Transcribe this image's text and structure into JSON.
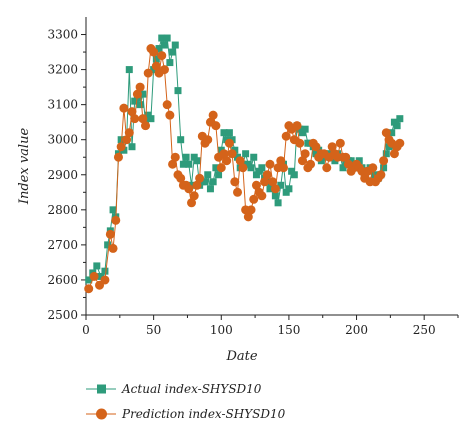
{
  "chart_data": {
    "type": "line",
    "xlabel": "Date",
    "ylabel": "Index value",
    "xlim": [
      0,
      275
    ],
    "ylim": [
      2500,
      3350
    ],
    "xticks": [
      0,
      50,
      100,
      150,
      200,
      250
    ],
    "yticks": [
      2500,
      2600,
      2700,
      2800,
      2900,
      3000,
      3100,
      3200,
      3300
    ],
    "grid": false,
    "legend_position": "bottom",
    "series": [
      {
        "name": "Actual index-SHYSD10",
        "color": "#2e9b7b",
        "marker": "square",
        "x": [
          2,
          5,
          8,
          11,
          14,
          16,
          18,
          20,
          22,
          24,
          26,
          28,
          30,
          32,
          34,
          36,
          38,
          40,
          42,
          44,
          46,
          48,
          50,
          52,
          54,
          56,
          58,
          60,
          62,
          64,
          66,
          68,
          70,
          72,
          74,
          76,
          78,
          80,
          82,
          84,
          86,
          88,
          90,
          92,
          94,
          96,
          98,
          100,
          102,
          104,
          106,
          108,
          110,
          112,
          114,
          116,
          118,
          120,
          122,
          124,
          126,
          128,
          130,
          132,
          134,
          136,
          138,
          140,
          142,
          144,
          146,
          148,
          150,
          152,
          154,
          156,
          158,
          160,
          162,
          164,
          166,
          168,
          170,
          172,
          174,
          176,
          178,
          180,
          182,
          184,
          186,
          188,
          190,
          192,
          194,
          196,
          198,
          200,
          202,
          204,
          206,
          208,
          210,
          212,
          214,
          216,
          218,
          220,
          222,
          224,
          226,
          228,
          230,
          232
        ],
        "y": [
          2600,
          2620,
          2640,
          2610,
          2625,
          2700,
          2740,
          2800,
          2780,
          2960,
          3000,
          2970,
          3000,
          3200,
          2980,
          3110,
          3120,
          3100,
          3130,
          3050,
          3070,
          3060,
          3200,
          3230,
          3260,
          3290,
          3270,
          3290,
          3220,
          3250,
          3270,
          3140,
          3000,
          2930,
          2950,
          2930,
          2870,
          2950,
          2940,
          2870,
          2880,
          2880,
          2900,
          2860,
          2880,
          2920,
          2900,
          2970,
          3020,
          3000,
          3020,
          3000,
          2970,
          2950,
          2920,
          2930,
          2960,
          2930,
          2920,
          2950,
          2900,
          2910,
          2920,
          2890,
          2880,
          2860,
          2870,
          2840,
          2820,
          2870,
          2930,
          2850,
          2860,
          2910,
          2900,
          3040,
          3030,
          3020,
          3030,
          2990,
          2990,
          2980,
          2960,
          2970,
          2940,
          2960,
          2950,
          2960,
          2960,
          2940,
          2960,
          2950,
          2920,
          2930,
          2940,
          2940,
          2920,
          2920,
          2940,
          2920,
          2900,
          2910,
          2920,
          2880,
          2900,
          2890,
          2900,
          2920,
          2960,
          2980,
          3020,
          3050,
          3040,
          3060
        ]
      },
      {
        "name": "Prediction index-SHYSD10",
        "color": "#d4631a",
        "marker": "circle",
        "x": [
          2,
          6,
          10,
          14,
          18,
          20,
          22,
          24,
          26,
          28,
          30,
          32,
          34,
          36,
          38,
          40,
          42,
          44,
          46,
          48,
          50,
          52,
          54,
          56,
          58,
          60,
          62,
          64,
          66,
          68,
          70,
          72,
          74,
          76,
          78,
          80,
          82,
          84,
          86,
          88,
          90,
          92,
          94,
          96,
          98,
          100,
          102,
          104,
          106,
          108,
          110,
          112,
          114,
          116,
          118,
          120,
          122,
          124,
          126,
          128,
          130,
          132,
          134,
          136,
          138,
          140,
          142,
          144,
          146,
          148,
          150,
          152,
          154,
          156,
          158,
          160,
          162,
          164,
          166,
          168,
          170,
          172,
          174,
          176,
          178,
          180,
          182,
          184,
          186,
          188,
          190,
          192,
          194,
          196,
          198,
          200,
          202,
          204,
          206,
          208,
          210,
          212,
          214,
          216,
          218,
          220,
          222,
          224,
          226,
          228,
          230,
          232
        ],
        "y": [
          2575,
          2610,
          2585,
          2600,
          2730,
          2690,
          2770,
          2950,
          2980,
          3090,
          3000,
          3020,
          3080,
          3060,
          3130,
          3150,
          3060,
          3040,
          3190,
          3260,
          3250,
          3210,
          3190,
          3240,
          3200,
          3100,
          3070,
          2930,
          2950,
          2900,
          2890,
          2870,
          2870,
          2860,
          2820,
          2840,
          2870,
          2890,
          3010,
          2990,
          3000,
          3050,
          3070,
          3040,
          2950,
          2920,
          2960,
          2940,
          2990,
          2960,
          2880,
          2850,
          2940,
          2920,
          2800,
          2780,
          2800,
          2830,
          2870,
          2850,
          2840,
          2880,
          2900,
          2930,
          2880,
          2860,
          2920,
          2940,
          2920,
          3010,
          3040,
          3030,
          3000,
          3040,
          2990,
          2940,
          2960,
          2920,
          2930,
          2990,
          2980,
          2950,
          2960,
          2960,
          2920,
          2950,
          2980,
          2960,
          2950,
          2990,
          2950,
          2950,
          2930,
          2910,
          2920,
          2930,
          2920,
          2910,
          2890,
          2910,
          2880,
          2920,
          2880,
          2890,
          2900,
          2940,
          3020,
          3000,
          2990,
          2960,
          2980,
          2990
        ]
      }
    ]
  }
}
